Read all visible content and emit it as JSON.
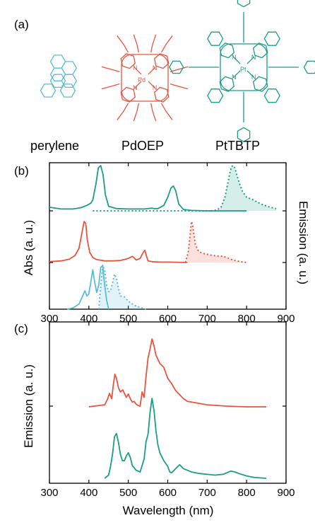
{
  "colors": {
    "perylene": "#5bbcd9",
    "pdoep": "#e8553f",
    "pttbtp": "#1a9e86",
    "axis": "#000000"
  },
  "panel_labels": {
    "a": "(a)",
    "b": "(b)",
    "c": "(c)"
  },
  "molecules": {
    "perylene": "perylene",
    "pdoep": "PdOEP",
    "pttbtp": "PtTBTP",
    "pd_atom": "Pd",
    "pt_atom": "Pt",
    "n_atom": "N"
  },
  "chart_data": [
    {
      "panel": "(b)",
      "type": "line",
      "xlabel": "",
      "ylabel": "Abs (a. u.)",
      "ylabel_right": "Emission (a. u.)",
      "xlim": [
        300,
        900
      ],
      "xticks": [
        "300",
        "400",
        "500",
        "600",
        "700",
        "800",
        "900"
      ],
      "grid": false,
      "series": [
        {
          "molecule": "perylene",
          "kind": "absorption",
          "style": "solid",
          "offset": 0,
          "x": [
            345,
            360,
            375,
            380,
            390,
            395,
            400,
            405,
            410,
            415,
            420,
            425,
            430,
            435,
            438,
            445,
            450
          ],
          "y": [
            0.0,
            0.03,
            0.12,
            0.22,
            0.42,
            0.3,
            0.35,
            0.62,
            0.9,
            0.6,
            0.38,
            0.55,
            0.95,
            1.0,
            0.7,
            0.2,
            0.0
          ]
        },
        {
          "molecule": "perylene",
          "kind": "emission",
          "style": "dotted",
          "offset": 0,
          "x": [
            425,
            430,
            435,
            440,
            445,
            450,
            455,
            460,
            465,
            470,
            475,
            480,
            490,
            500,
            510,
            520,
            530,
            545
          ],
          "y": [
            0.0,
            0.5,
            1.0,
            0.88,
            0.55,
            0.4,
            0.42,
            0.6,
            0.8,
            0.7,
            0.48,
            0.3,
            0.28,
            0.18,
            0.12,
            0.07,
            0.04,
            0.0
          ]
        },
        {
          "molecule": "PdOEP",
          "kind": "absorption",
          "style": "solid",
          "offset": 1,
          "x": [
            300,
            330,
            350,
            365,
            375,
            382,
            388,
            392,
            396,
            402,
            410,
            420,
            440,
            460,
            480,
            500,
            510,
            515,
            520,
            530,
            538,
            542,
            546,
            550,
            560,
            580,
            600,
            650
          ],
          "y": [
            0.02,
            0.04,
            0.08,
            0.17,
            0.35,
            0.7,
            1.0,
            0.95,
            0.55,
            0.25,
            0.12,
            0.07,
            0.04,
            0.04,
            0.05,
            0.1,
            0.15,
            0.11,
            0.06,
            0.1,
            0.25,
            0.3,
            0.16,
            0.04,
            0.02,
            0.01,
            0.01,
            0.0
          ]
        },
        {
          "molecule": "PdOEP",
          "kind": "emission",
          "style": "dotted",
          "offset": 1,
          "x": [
            645,
            652,
            657,
            660,
            663,
            666,
            670,
            675,
            680,
            690,
            700,
            710,
            725,
            740,
            750,
            760,
            770,
            785,
            800
          ],
          "y": [
            0.0,
            0.25,
            0.7,
            1.0,
            0.92,
            0.7,
            0.45,
            0.32,
            0.26,
            0.22,
            0.2,
            0.18,
            0.16,
            0.15,
            0.12,
            0.08,
            0.05,
            0.02,
            0.0
          ]
        },
        {
          "molecule": "PtTBTP",
          "kind": "absorption",
          "style": "solid",
          "offset": 2,
          "x": [
            300,
            330,
            360,
            380,
            395,
            405,
            410,
            418,
            424,
            430,
            436,
            442,
            450,
            470,
            500,
            540,
            560,
            565,
            575,
            590,
            600,
            608,
            614,
            620,
            628,
            640,
            660,
            700,
            740,
            800
          ],
          "y": [
            0.08,
            0.04,
            0.04,
            0.07,
            0.12,
            0.17,
            0.24,
            0.6,
            0.95,
            1.0,
            0.8,
            0.35,
            0.1,
            0.05,
            0.04,
            0.04,
            0.06,
            0.05,
            0.05,
            0.12,
            0.3,
            0.5,
            0.55,
            0.45,
            0.15,
            0.03,
            0.01,
            0.0,
            0.0,
            0.0
          ]
        },
        {
          "molecule": "PtTBTP",
          "kind": "emission",
          "style": "dotted",
          "offset": 2,
          "x": [
            710,
            725,
            735,
            745,
            752,
            758,
            762,
            766,
            770,
            775,
            782,
            790,
            800,
            815,
            830,
            845,
            860,
            875
          ],
          "y": [
            0.0,
            0.02,
            0.08,
            0.3,
            0.6,
            0.85,
            0.98,
            1.0,
            0.95,
            0.8,
            0.6,
            0.42,
            0.3,
            0.25,
            0.18,
            0.12,
            0.08,
            0.05
          ]
        }
      ]
    },
    {
      "panel": "(c)",
      "type": "line",
      "xlabel": "Wavelength (nm)",
      "ylabel": "Emission (a. u.)",
      "xlim": [
        300,
        900
      ],
      "xticks": [
        "300",
        "400",
        "500",
        "600",
        "700",
        "800",
        "900"
      ],
      "grid": false,
      "series": [
        {
          "color_key": "pdoep",
          "offset": 1,
          "x": [
            400,
            440,
            448,
            452,
            458,
            462,
            466,
            470,
            475,
            480,
            486,
            490,
            495,
            500,
            505,
            510,
            515,
            520,
            525,
            530,
            535,
            540,
            545,
            550,
            555,
            560,
            565,
            570,
            580,
            590,
            600,
            610,
            620,
            630,
            640,
            650,
            700,
            750,
            800,
            850
          ],
          "y": [
            0.0,
            0.03,
            0.12,
            0.2,
            0.12,
            0.32,
            0.48,
            0.42,
            0.28,
            0.22,
            0.25,
            0.2,
            0.14,
            0.19,
            0.12,
            0.07,
            0.08,
            0.04,
            0.02,
            0.01,
            0.22,
            0.14,
            0.45,
            0.72,
            0.85,
            1.0,
            0.9,
            0.76,
            0.64,
            0.58,
            0.42,
            0.34,
            0.24,
            0.18,
            0.12,
            0.08,
            0.03,
            0.01,
            0.0,
            0.0
          ]
        },
        {
          "color_key": "pttbtp",
          "offset": 0,
          "x": [
            440,
            450,
            455,
            460,
            465,
            470,
            475,
            480,
            485,
            490,
            495,
            500,
            505,
            510,
            520,
            530,
            540,
            545,
            550,
            555,
            560,
            565,
            570,
            575,
            580,
            590,
            600,
            605,
            610,
            620,
            630,
            640,
            650,
            660,
            680,
            700,
            720,
            740,
            760,
            770,
            780,
            800,
            820,
            850
          ],
          "y": [
            0.0,
            0.04,
            0.15,
            0.3,
            0.52,
            0.56,
            0.45,
            0.3,
            0.22,
            0.22,
            0.28,
            0.32,
            0.26,
            0.16,
            0.1,
            0.08,
            0.24,
            0.46,
            0.55,
            0.82,
            1.0,
            0.85,
            0.6,
            0.42,
            0.32,
            0.22,
            0.15,
            0.08,
            0.07,
            0.12,
            0.17,
            0.12,
            0.1,
            0.08,
            0.06,
            0.05,
            0.04,
            0.05,
            0.09,
            0.08,
            0.06,
            0.03,
            0.01,
            0.0
          ]
        }
      ]
    }
  ]
}
